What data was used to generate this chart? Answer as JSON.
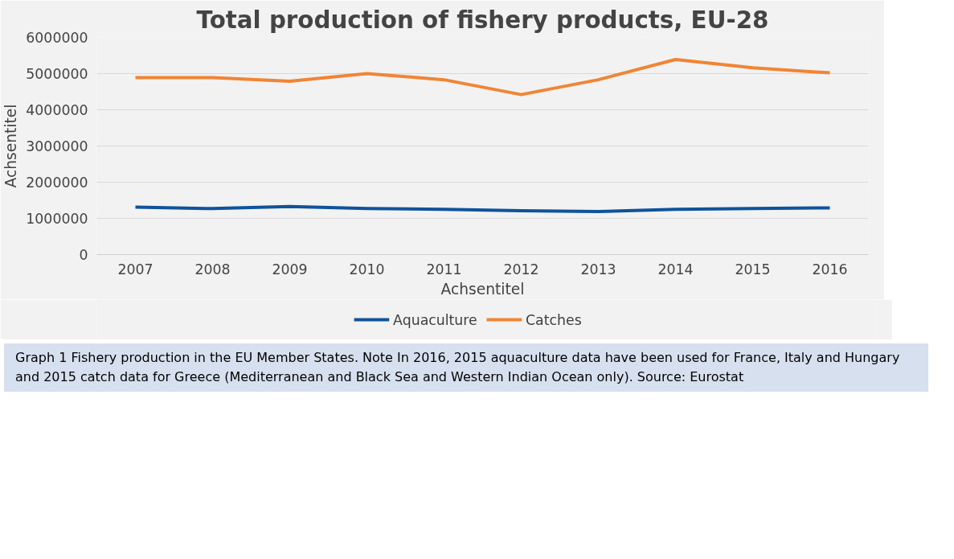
{
  "chart_data": {
    "type": "line",
    "title": "Total production of fishery products, EU-28",
    "xlabel": "Achsentitel",
    "ylabel": "Achsentitel",
    "categories": [
      "2007",
      "2008",
      "2009",
      "2010",
      "2011",
      "2012",
      "2013",
      "2014",
      "2015",
      "2016"
    ],
    "series": [
      {
        "name": "Aquaculture",
        "color": "#0f539b",
        "values": [
          1310000,
          1270000,
          1330000,
          1270000,
          1250000,
          1210000,
          1190000,
          1250000,
          1270000,
          1290000
        ]
      },
      {
        "name": "Catches",
        "color": "#ef8535",
        "values": [
          4890000,
          4890000,
          4790000,
          5000000,
          4830000,
          4420000,
          4830000,
          5390000,
          5160000,
          5020000
        ]
      }
    ],
    "ylim": [
      0,
      6000000
    ],
    "yticks": [
      0,
      1000000,
      2000000,
      3000000,
      4000000,
      5000000,
      6000000
    ],
    "grid": "y",
    "legend": "bottom",
    "marker": "none",
    "line_style": "solid",
    "annotations": [
      "Graph 1 Fishery production in the EU Member States. Note In 2016, 2015 aquaculture data have been used for France, Italy and Hungary and 2015 catch data for Greece (Mediterranean and Black Sea and Western Indian Ocean only). Source: Eurostat"
    ]
  }
}
